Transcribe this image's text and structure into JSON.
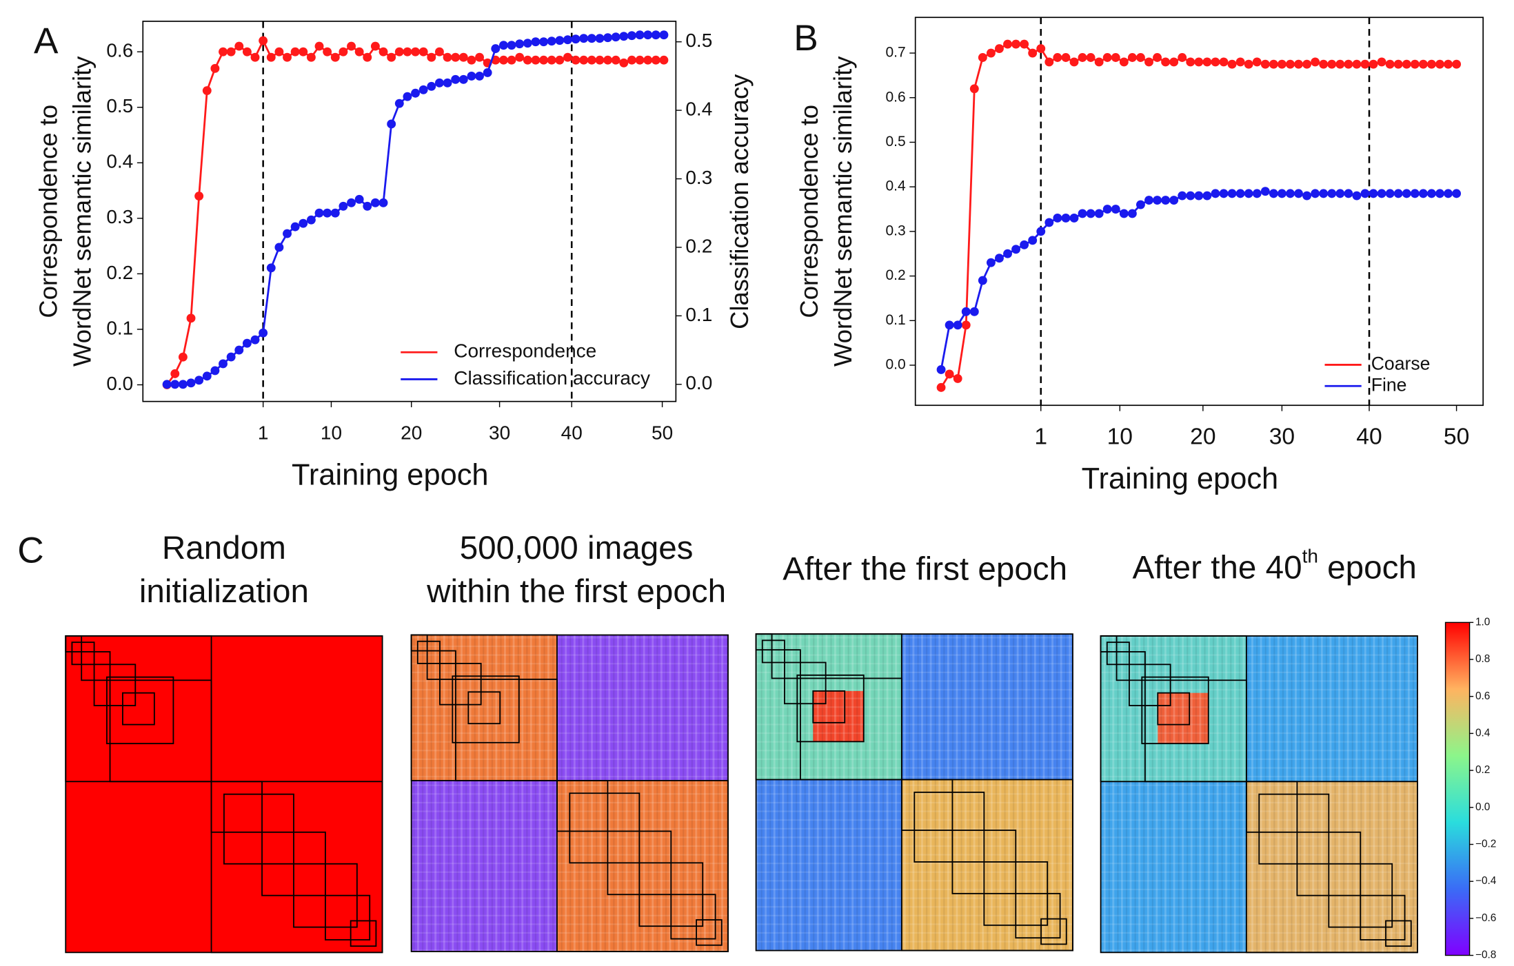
{
  "chart_data": [
    {
      "type": "line",
      "panel_label": "A",
      "x": [
        0,
        1,
        2,
        3,
        4,
        5,
        6,
        7,
        8,
        9,
        10,
        11,
        12,
        13,
        14,
        15,
        16,
        17,
        18,
        19,
        20,
        21,
        22,
        23,
        24,
        25,
        26,
        27,
        28,
        29,
        30,
        31,
        32,
        33,
        34,
        35,
        36,
        37,
        38,
        39,
        40,
        41,
        42,
        43,
        44,
        45,
        46,
        47,
        48,
        49,
        50,
        51,
        52,
        53,
        54,
        55,
        56,
        57,
        58,
        59,
        60,
        61,
        62
      ],
      "xlim": [
        -3,
        63.5
      ],
      "xticks": [
        {
          "value": 12,
          "label": "1"
        },
        {
          "value": 20.5,
          "label": "10"
        },
        {
          "value": 30.5,
          "label": "20"
        },
        {
          "value": 41.5,
          "label": "30"
        },
        {
          "value": 50.5,
          "label": "40"
        },
        {
          "value": 61.8,
          "label": "50"
        }
      ],
      "vlines": [
        12,
        50.5
      ],
      "xlabel": "Training epoch",
      "ylabel": [
        "Correspondence to",
        "WordNet semantic similarity"
      ],
      "ylim": [
        -0.03,
        0.655
      ],
      "yticks": [
        {
          "value": 0,
          "label": "0.0"
        },
        0.1,
        0.2,
        0.3,
        0.4,
        0.5,
        0.6
      ],
      "y2label": "Classification accuracy",
      "y2lim": [
        -0.025,
        0.53
      ],
      "y2ticks": [
        {
          "value": 0,
          "label": "0.0"
        },
        0.1,
        0.2,
        0.3,
        0.4,
        0.5
      ],
      "legend": "lower right",
      "series": [
        {
          "name": "Correspondence",
          "color": "#ff1a1a",
          "values": [
            0.0,
            0.02,
            0.05,
            0.12,
            0.34,
            0.53,
            0.57,
            0.6,
            0.6,
            0.61,
            0.6,
            0.59,
            0.62,
            0.59,
            0.6,
            0.59,
            0.6,
            0.6,
            0.59,
            0.61,
            0.6,
            0.59,
            0.6,
            0.61,
            0.6,
            0.59,
            0.61,
            0.6,
            0.59,
            0.6,
            0.6,
            0.6,
            0.6,
            0.59,
            0.6,
            0.59,
            0.59,
            0.59,
            0.585,
            0.59,
            0.58,
            0.585,
            0.585,
            0.585,
            0.59,
            0.585,
            0.585,
            0.585,
            0.585,
            0.585,
            0.59,
            0.585,
            0.585,
            0.585,
            0.585,
            0.585,
            0.585,
            0.58,
            0.585,
            0.585,
            0.585,
            0.585,
            0.585
          ]
        },
        {
          "name": "Classification  accuracy",
          "color": "#1a1aee",
          "axis": "y2",
          "values": [
            0,
            0,
            0,
            0.002,
            0.006,
            0.012,
            0.02,
            0.03,
            0.04,
            0.05,
            0.06,
            0.065,
            0.075,
            0.17,
            0.2,
            0.22,
            0.23,
            0.235,
            0.24,
            0.25,
            0.25,
            0.25,
            0.26,
            0.265,
            0.27,
            0.26,
            0.265,
            0.265,
            0.38,
            0.41,
            0.42,
            0.425,
            0.43,
            0.435,
            0.44,
            0.44,
            0.445,
            0.445,
            0.45,
            0.45,
            0.455,
            0.49,
            0.495,
            0.495,
            0.497,
            0.498,
            0.5,
            0.5,
            0.501,
            0.502,
            0.503,
            0.504,
            0.505,
            0.505,
            0.505,
            0.506,
            0.507,
            0.508,
            0.509,
            0.51,
            0.51,
            0.51,
            0.51
          ]
        }
      ]
    },
    {
      "type": "line",
      "panel_label": "B",
      "x": [
        0,
        1,
        2,
        3,
        4,
        5,
        6,
        7,
        8,
        9,
        10,
        11,
        12,
        13,
        14,
        15,
        16,
        17,
        18,
        19,
        20,
        21,
        22,
        23,
        24,
        25,
        26,
        27,
        28,
        29,
        30,
        31,
        32,
        33,
        34,
        35,
        36,
        37,
        38,
        39,
        40,
        41,
        42,
        43,
        44,
        45,
        46,
        47,
        48,
        49,
        50,
        51,
        52,
        53,
        54,
        55,
        56,
        57,
        58,
        59,
        60,
        61,
        62
      ],
      "xlim": [
        -3.1,
        65.2
      ],
      "xticks": [
        {
          "value": 12,
          "label": "1"
        },
        {
          "value": 21.5,
          "label": "10"
        },
        {
          "value": 31.5,
          "label": "20"
        },
        {
          "value": 41,
          "label": "30"
        },
        {
          "value": 51.5,
          "label": "40"
        },
        {
          "value": 62,
          "label": "50"
        }
      ],
      "vlines": [
        12,
        51.5
      ],
      "xlabel": "Training epoch",
      "ylabel": [
        "Correspondence  to",
        "WordNet semantic similarity"
      ],
      "ylim": [
        -0.09,
        0.78
      ],
      "yticks": [
        {
          "value": 0,
          "label": "0.0"
        },
        0.1,
        0.2,
        0.3,
        0.4,
        0.5,
        0.6,
        0.7
      ],
      "legend": "lower right",
      "series": [
        {
          "name": "Coarse",
          "color": "#ff1a1a",
          "values": [
            -0.05,
            -0.02,
            -0.03,
            0.09,
            0.62,
            0.69,
            0.7,
            0.71,
            0.72,
            0.72,
            0.72,
            0.7,
            0.71,
            0.68,
            0.69,
            0.69,
            0.68,
            0.69,
            0.69,
            0.68,
            0.69,
            0.69,
            0.68,
            0.69,
            0.69,
            0.68,
            0.69,
            0.68,
            0.68,
            0.69,
            0.68,
            0.68,
            0.68,
            0.68,
            0.68,
            0.675,
            0.68,
            0.675,
            0.68,
            0.675,
            0.675,
            0.675,
            0.675,
            0.675,
            0.675,
            0.68,
            0.675,
            0.675,
            0.675,
            0.675,
            0.675,
            0.675,
            0.675,
            0.68,
            0.675,
            0.675,
            0.675,
            0.675,
            0.675,
            0.675,
            0.675,
            0.675,
            0.675
          ]
        },
        {
          "name": "Fine",
          "color": "#1a1aee",
          "values": [
            -0.01,
            0.09,
            0.09,
            0.12,
            0.12,
            0.19,
            0.23,
            0.24,
            0.25,
            0.26,
            0.27,
            0.28,
            0.3,
            0.32,
            0.33,
            0.33,
            0.33,
            0.34,
            0.34,
            0.34,
            0.35,
            0.35,
            0.34,
            0.34,
            0.36,
            0.37,
            0.37,
            0.37,
            0.37,
            0.38,
            0.38,
            0.38,
            0.38,
            0.385,
            0.385,
            0.385,
            0.385,
            0.385,
            0.385,
            0.39,
            0.385,
            0.385,
            0.385,
            0.385,
            0.38,
            0.385,
            0.385,
            0.385,
            0.385,
            0.385,
            0.38,
            0.385,
            0.385,
            0.385,
            0.385,
            0.385,
            0.385,
            0.385,
            0.385,
            0.385,
            0.385,
            0.385,
            0.385
          ]
        }
      ]
    }
  ],
  "panel_c": {
    "panel_label": "C",
    "matrices": [
      {
        "title": [
          "Random",
          "initialization"
        ]
      },
      {
        "title": [
          "500,000 images",
          "within the first epoch"
        ]
      },
      {
        "title": [
          "After the first epoch"
        ]
      },
      {
        "title_parts": [
          "After the 40",
          "th",
          " epoch"
        ]
      }
    ],
    "colorbar": {
      "ylim": [
        -0.8,
        1.0
      ],
      "yticks": [
        {
          "value": 1.0,
          "label": "1.0"
        },
        0.8,
        0.6,
        0.4,
        0.2,
        {
          "value": 0,
          "label": "0.0"
        },
        {
          "value": -0.2,
          "label": "−0.2"
        },
        {
          "value": -0.4,
          "label": "−0.4"
        },
        {
          "value": -0.6,
          "label": "−0.6"
        },
        {
          "value": -0.8,
          "label": "−0.8"
        }
      ]
    }
  }
}
